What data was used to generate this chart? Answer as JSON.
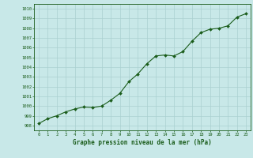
{
  "x": [
    0,
    1,
    2,
    3,
    4,
    5,
    6,
    7,
    8,
    9,
    10,
    11,
    12,
    13,
    14,
    15,
    16,
    17,
    18,
    19,
    20,
    21,
    22,
    23
  ],
  "y": [
    998.2,
    998.7,
    999.0,
    999.4,
    999.7,
    999.9,
    999.85,
    1000.0,
    1000.6,
    1001.3,
    1002.5,
    1003.3,
    1004.35,
    1005.15,
    1005.25,
    1005.15,
    1005.6,
    1006.65,
    1007.55,
    1007.9,
    1008.0,
    1008.25,
    1009.15,
    1009.5
  ],
  "ylim": [
    997.5,
    1010.5
  ],
  "xlim": [
    -0.5,
    23.5
  ],
  "yticks": [
    998,
    999,
    1000,
    1001,
    1002,
    1003,
    1004,
    1005,
    1006,
    1007,
    1008,
    1009,
    1010
  ],
  "xticks": [
    0,
    1,
    2,
    3,
    4,
    5,
    6,
    7,
    8,
    9,
    10,
    11,
    12,
    13,
    14,
    15,
    16,
    17,
    18,
    19,
    20,
    21,
    22,
    23
  ],
  "line_color": "#1a5c1a",
  "marker_color": "#1a5c1a",
  "bg_color": "#c8e8e8",
  "grid_color": "#aad0d0",
  "border_color": "#1a5c1a",
  "xlabel": "Graphe pression niveau de la mer (hPa)",
  "xlabel_color": "#1a5c1a",
  "tick_color": "#1a5c1a"
}
